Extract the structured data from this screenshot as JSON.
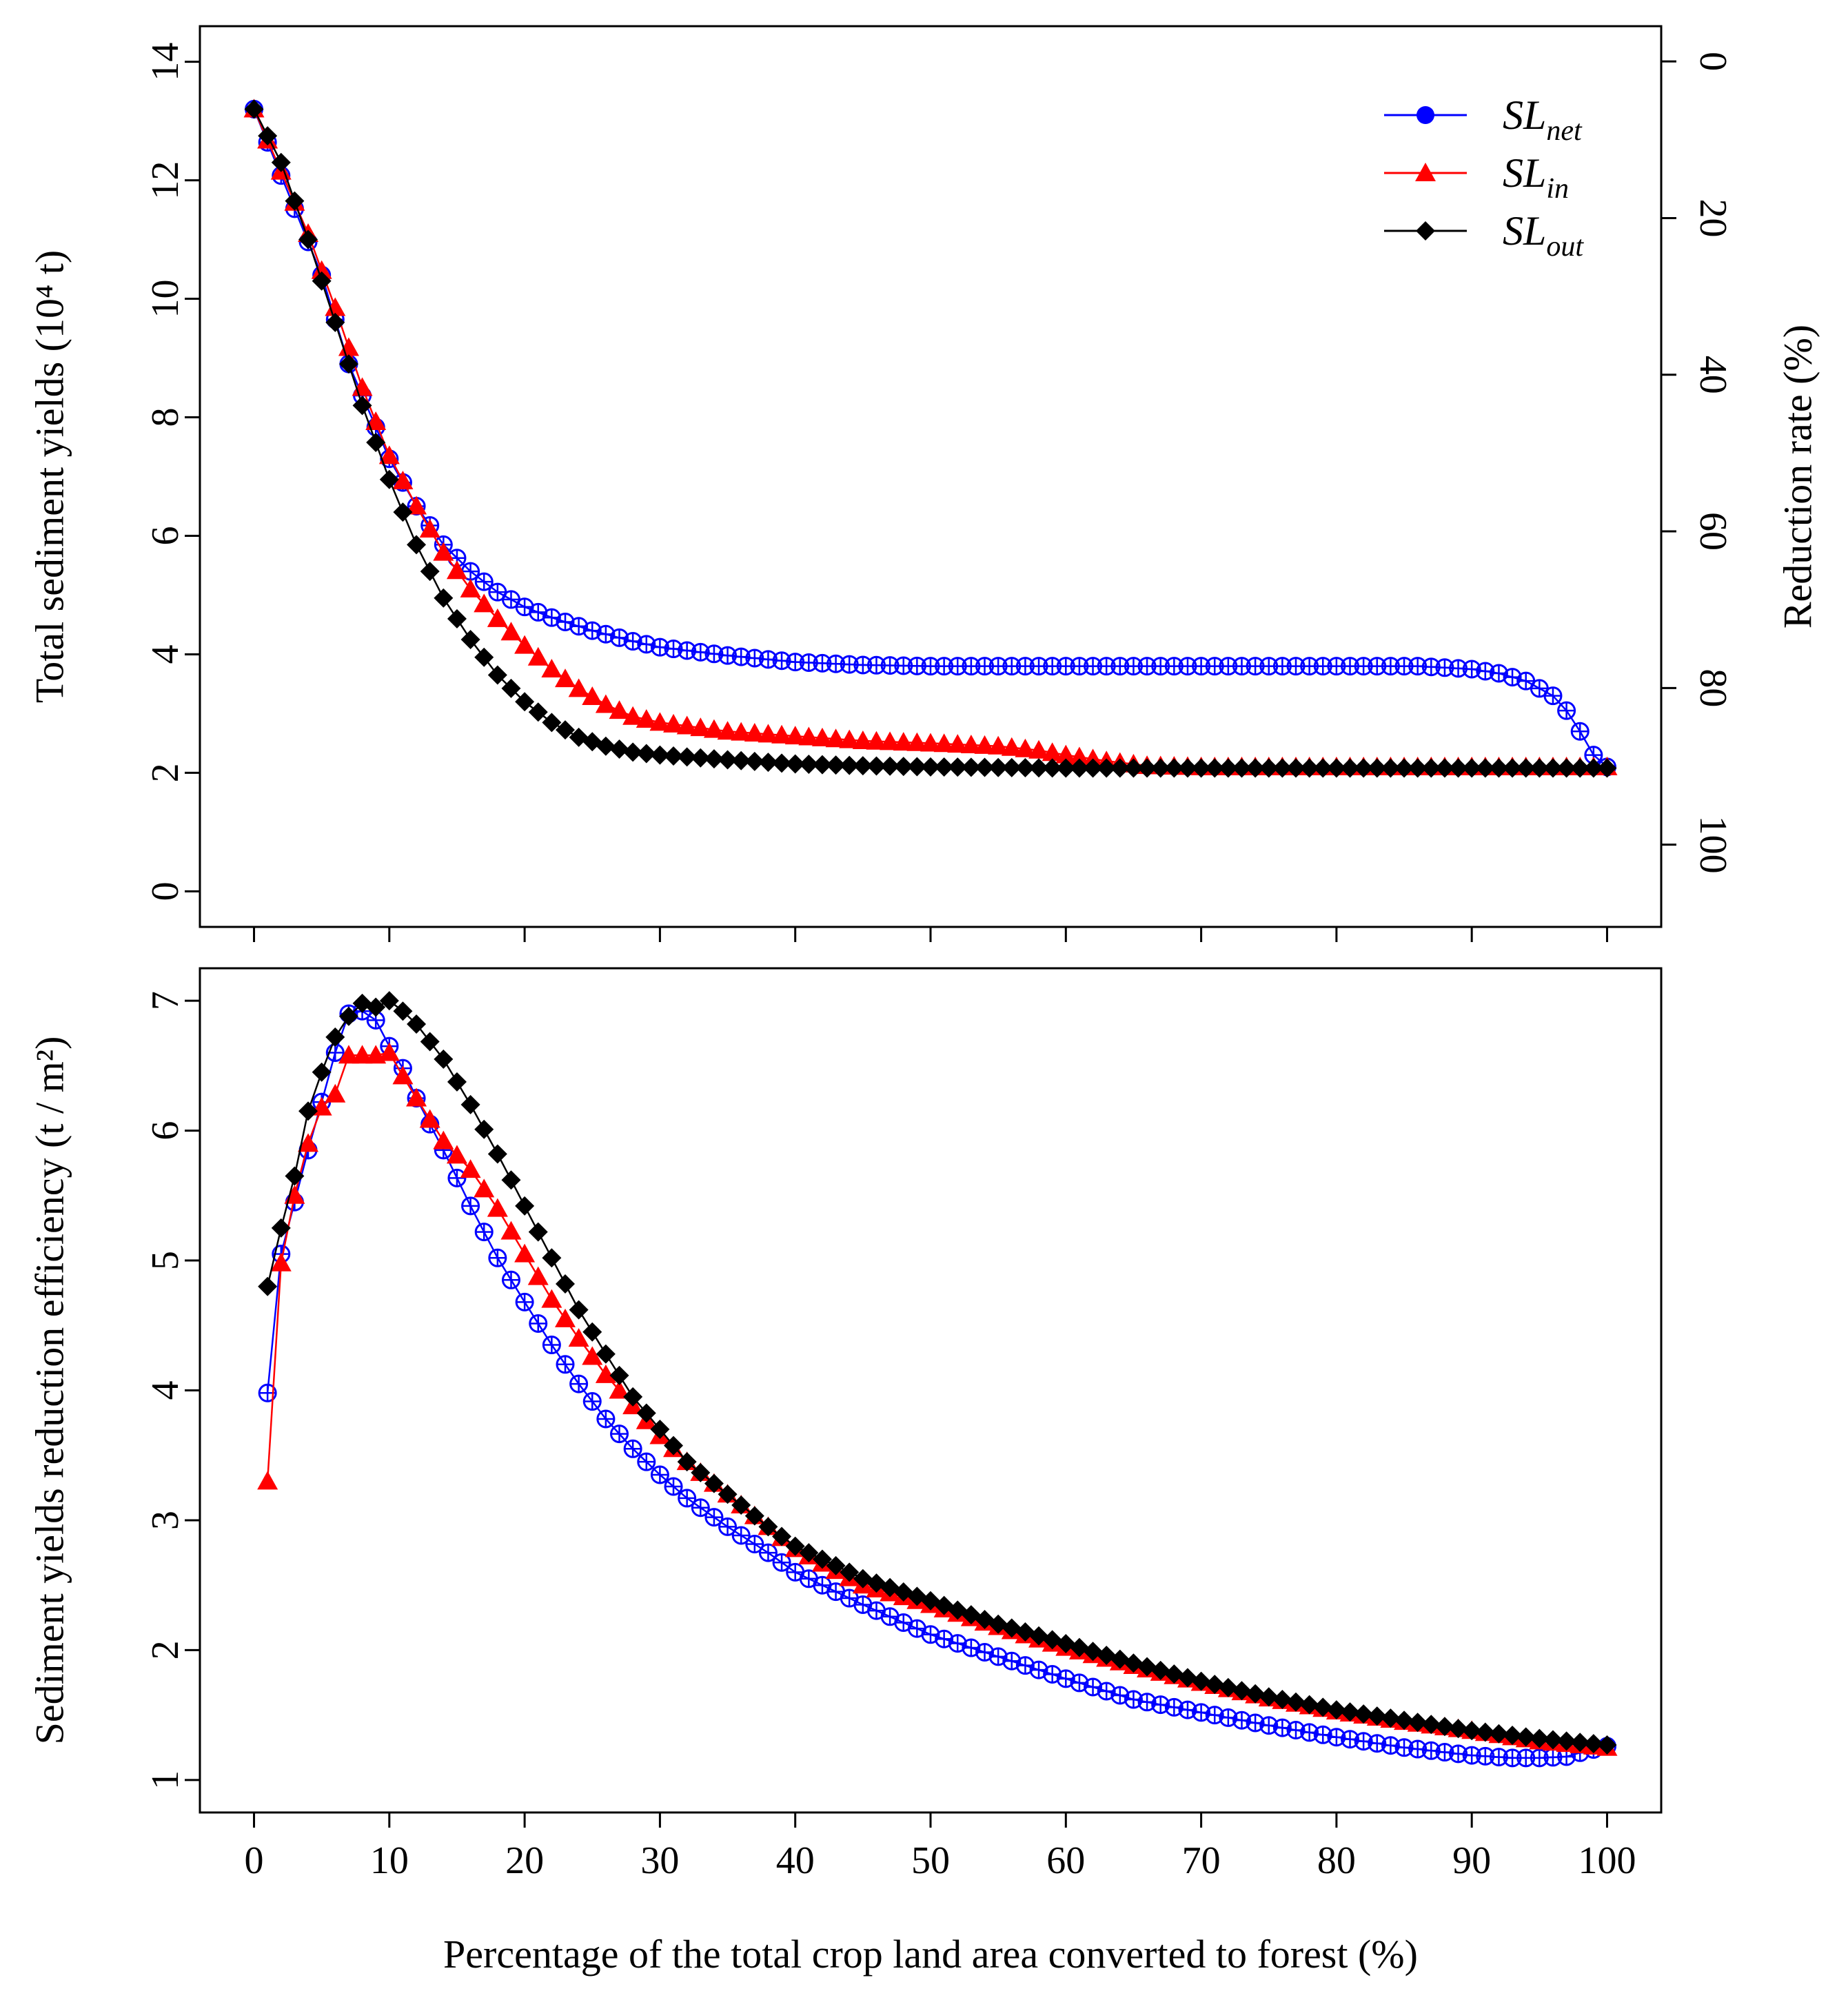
{
  "chart_data": [
    {
      "type": "scatter",
      "panel": "top",
      "ylabel": "Total sediment yields (10⁴ t)",
      "y2label": "Reduction rate (%)",
      "xlim": [
        -4,
        104
      ],
      "ylim": [
        -0.6,
        14.6
      ],
      "y2lim": [
        -4.5,
        110.5
      ],
      "yticks": [
        0,
        2,
        4,
        6,
        8,
        10,
        12,
        14
      ],
      "y2ticks": [
        0,
        20,
        40,
        60,
        80,
        100
      ],
      "x_start": 0,
      "legend_position": "top-right",
      "legend": [
        {
          "base": "SL",
          "sub": "net",
          "series": "SL_net"
        },
        {
          "base": "SL",
          "sub": "in",
          "series": "SL_in"
        },
        {
          "base": "SL",
          "sub": "out",
          "series": "SL_out"
        }
      ],
      "series": [
        {
          "name": "SL_net",
          "color": "#0000ff",
          "marker": "circle-plus",
          "points": [
            [
              0,
              13.2
            ],
            [
              5,
              10.4
            ],
            [
              7,
              8.9
            ],
            [
              10,
              7.3
            ],
            [
              12,
              6.5
            ],
            [
              14,
              5.85
            ],
            [
              16,
              5.4
            ],
            [
              18,
              5.05
            ],
            [
              20,
              4.8
            ],
            [
              22,
              4.62
            ],
            [
              25,
              4.4
            ],
            [
              28,
              4.22
            ],
            [
              30,
              4.12
            ],
            [
              35,
              3.98
            ],
            [
              40,
              3.87
            ],
            [
              45,
              3.82
            ],
            [
              50,
              3.8
            ],
            [
              60,
              3.8
            ],
            [
              70,
              3.8
            ],
            [
              80,
              3.8
            ],
            [
              86,
              3.8
            ],
            [
              90,
              3.75
            ],
            [
              92,
              3.68
            ],
            [
              94,
              3.55
            ],
            [
              96,
              3.3
            ],
            [
              97,
              3.05
            ],
            [
              98,
              2.7
            ],
            [
              99,
              2.3
            ],
            [
              100,
              2.1
            ]
          ]
        },
        {
          "name": "SL_in",
          "color": "#ff0000",
          "marker": "triangle",
          "points": [
            [
              0,
              13.2
            ],
            [
              4,
              11.1
            ],
            [
              6,
              9.85
            ],
            [
              8,
              8.5
            ],
            [
              10,
              7.35
            ],
            [
              12,
              6.5
            ],
            [
              14,
              5.72
            ],
            [
              16,
              5.1
            ],
            [
              18,
              4.6
            ],
            [
              20,
              4.15
            ],
            [
              22,
              3.75
            ],
            [
              24,
              3.42
            ],
            [
              26,
              3.15
            ],
            [
              28,
              2.95
            ],
            [
              30,
              2.85
            ],
            [
              35,
              2.7
            ],
            [
              40,
              2.62
            ],
            [
              45,
              2.54
            ],
            [
              50,
              2.5
            ],
            [
              55,
              2.45
            ],
            [
              58,
              2.38
            ],
            [
              60,
              2.3
            ],
            [
              63,
              2.2
            ],
            [
              66,
              2.12
            ],
            [
              70,
              2.1
            ],
            [
              80,
              2.1
            ],
            [
              90,
              2.1
            ],
            [
              100,
              2.1
            ]
          ]
        },
        {
          "name": "SL_out",
          "color": "#000000",
          "marker": "diamond",
          "points": [
            [
              0,
              13.2
            ],
            [
              2,
              12.3
            ],
            [
              4,
              11.0
            ],
            [
              6,
              9.6
            ],
            [
              8,
              8.2
            ],
            [
              10,
              6.95
            ],
            [
              12,
              5.85
            ],
            [
              14,
              4.95
            ],
            [
              16,
              4.25
            ],
            [
              18,
              3.65
            ],
            [
              20,
              3.2
            ],
            [
              22,
              2.85
            ],
            [
              24,
              2.6
            ],
            [
              26,
              2.45
            ],
            [
              28,
              2.35
            ],
            [
              30,
              2.3
            ],
            [
              35,
              2.22
            ],
            [
              40,
              2.15
            ],
            [
              45,
              2.12
            ],
            [
              50,
              2.1
            ],
            [
              60,
              2.08
            ],
            [
              70,
              2.08
            ],
            [
              80,
              2.08
            ],
            [
              90,
              2.08
            ],
            [
              100,
              2.08
            ]
          ]
        }
      ]
    },
    {
      "type": "scatter",
      "panel": "bottom",
      "ylabel": "Sediment yields reduction efficiency (t / m²)",
      "xlabel": "Percentage of the total crop land area converted to forest (%)",
      "xlim": [
        -4,
        104
      ],
      "ylim": [
        0.75,
        7.25
      ],
      "yticks": [
        1,
        2,
        3,
        4,
        5,
        6,
        7
      ],
      "xticks": [
        0,
        10,
        20,
        30,
        40,
        50,
        60,
        70,
        80,
        90,
        100
      ],
      "x_start": 1,
      "series": [
        {
          "name": "SL_net",
          "color": "#0000ff",
          "marker": "circle-plus",
          "points": [
            [
              1,
              3.98
            ],
            [
              2,
              5.05
            ],
            [
              3,
              5.45
            ],
            [
              4,
              5.85
            ],
            [
              5,
              6.22
            ],
            [
              6,
              6.6
            ],
            [
              7,
              6.9
            ],
            [
              8,
              6.92
            ],
            [
              9,
              6.85
            ],
            [
              10,
              6.65
            ],
            [
              11,
              6.48
            ],
            [
              12,
              6.25
            ],
            [
              14,
              5.85
            ],
            [
              16,
              5.42
            ],
            [
              18,
              5.02
            ],
            [
              20,
              4.68
            ],
            [
              22,
              4.35
            ],
            [
              24,
              4.05
            ],
            [
              26,
              3.78
            ],
            [
              28,
              3.55
            ],
            [
              30,
              3.35
            ],
            [
              32,
              3.17
            ],
            [
              35,
              2.95
            ],
            [
              38,
              2.75
            ],
            [
              40,
              2.6
            ],
            [
              45,
              2.35
            ],
            [
              50,
              2.12
            ],
            [
              55,
              1.95
            ],
            [
              60,
              1.78
            ],
            [
              65,
              1.62
            ],
            [
              70,
              1.52
            ],
            [
              75,
              1.42
            ],
            [
              80,
              1.33
            ],
            [
              85,
              1.25
            ],
            [
              90,
              1.19
            ],
            [
              93,
              1.17
            ],
            [
              95,
              1.17
            ],
            [
              97,
              1.18
            ],
            [
              98,
              1.21
            ],
            [
              100,
              1.26
            ]
          ]
        },
        {
          "name": "SL_in",
          "color": "#ff0000",
          "marker": "triangle",
          "points": [
            [
              1,
              3.3
            ],
            [
              2,
              4.98
            ],
            [
              3,
              5.5
            ],
            [
              4,
              5.9
            ],
            [
              5,
              6.18
            ],
            [
              6,
              6.28
            ],
            [
              7,
              6.58
            ],
            [
              8,
              6.58
            ],
            [
              9,
              6.58
            ],
            [
              10,
              6.6
            ],
            [
              11,
              6.42
            ],
            [
              12,
              6.25
            ],
            [
              14,
              5.92
            ],
            [
              16,
              5.7
            ],
            [
              18,
              5.4
            ],
            [
              20,
              5.05
            ],
            [
              22,
              4.7
            ],
            [
              24,
              4.4
            ],
            [
              26,
              4.12
            ],
            [
              28,
              3.88
            ],
            [
              30,
              3.65
            ],
            [
              32,
              3.45
            ],
            [
              35,
              3.2
            ],
            [
              38,
              2.95
            ],
            [
              40,
              2.78
            ],
            [
              45,
              2.5
            ],
            [
              50,
              2.35
            ],
            [
              55,
              2.18
            ],
            [
              60,
              2.02
            ],
            [
              65,
              1.88
            ],
            [
              70,
              1.75
            ],
            [
              75,
              1.63
            ],
            [
              80,
              1.53
            ],
            [
              85,
              1.45
            ],
            [
              90,
              1.38
            ],
            [
              95,
              1.3
            ],
            [
              100,
              1.25
            ]
          ]
        },
        {
          "name": "SL_out",
          "color": "#000000",
          "marker": "diamond",
          "points": [
            [
              1,
              4.8
            ],
            [
              2,
              5.25
            ],
            [
              3,
              5.65
            ],
            [
              4,
              6.15
            ],
            [
              5,
              6.45
            ],
            [
              6,
              6.72
            ],
            [
              7,
              6.88
            ],
            [
              8,
              6.98
            ],
            [
              9,
              6.95
            ],
            [
              10,
              7.0
            ],
            [
              11,
              6.92
            ],
            [
              12,
              6.82
            ],
            [
              14,
              6.55
            ],
            [
              16,
              6.2
            ],
            [
              18,
              5.82
            ],
            [
              20,
              5.42
            ],
            [
              22,
              5.02
            ],
            [
              24,
              4.62
            ],
            [
              26,
              4.28
            ],
            [
              28,
              3.95
            ],
            [
              30,
              3.7
            ],
            [
              32,
              3.45
            ],
            [
              35,
              3.2
            ],
            [
              38,
              2.95
            ],
            [
              40,
              2.8
            ],
            [
              45,
              2.55
            ],
            [
              50,
              2.38
            ],
            [
              55,
              2.2
            ],
            [
              60,
              2.05
            ],
            [
              65,
              1.9
            ],
            [
              70,
              1.76
            ],
            [
              75,
              1.64
            ],
            [
              80,
              1.54
            ],
            [
              85,
              1.46
            ],
            [
              90,
              1.38
            ],
            [
              95,
              1.32
            ],
            [
              100,
              1.27
            ]
          ]
        }
      ]
    }
  ]
}
